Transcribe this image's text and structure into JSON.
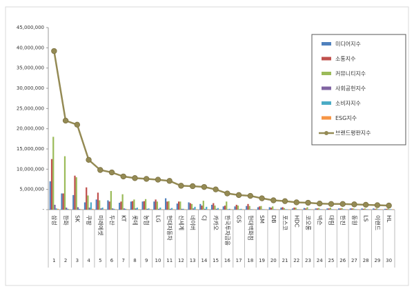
{
  "chart_data": {
    "type": "bar",
    "categories": [
      "삼성",
      "한화",
      "SK",
      "쿠팡",
      "미래에셋",
      "두산",
      "KT",
      "롯데",
      "농협",
      "LG",
      "현대자동차",
      "신세계",
      "네이버",
      "CJ",
      "카카오",
      "한국투자금융",
      "GS",
      "현대백화점",
      "SM",
      "DB",
      "포스코",
      "HDC",
      "코오롱",
      "넥슨",
      "대림",
      "한진",
      "동원",
      "LS",
      "이랜드",
      "HL"
    ],
    "ranks": [
      1,
      2,
      3,
      4,
      5,
      6,
      7,
      8,
      9,
      10,
      11,
      12,
      13,
      14,
      15,
      16,
      17,
      18,
      19,
      20,
      21,
      22,
      23,
      24,
      25,
      26,
      27,
      28,
      29,
      30
    ],
    "ylim": [
      0,
      45000000
    ],
    "yticks": [
      {
        "value": 0,
        "label": "-"
      },
      {
        "value": 5000000,
        "label": "5,000,000"
      },
      {
        "value": 10000000,
        "label": "10,000,000"
      },
      {
        "value": 15000000,
        "label": "15,000,000"
      },
      {
        "value": 20000000,
        "label": "20,000,000"
      },
      {
        "value": 25000000,
        "label": "25,000,000"
      },
      {
        "value": 30000000,
        "label": "30,000,000"
      },
      {
        "value": 35000000,
        "label": "35,000,000"
      },
      {
        "value": 40000000,
        "label": "40,000,000"
      },
      {
        "value": 45000000,
        "label": "45,000,000"
      }
    ],
    "legend": "upper right",
    "series": [
      {
        "name": "미디어지수",
        "color": "#4f81bd",
        "values": [
          7000000,
          4000000,
          3600000,
          1800000,
          2500000,
          2300000,
          1700000,
          2000000,
          2000000,
          2000000,
          2800000,
          1500000,
          1800000,
          1400000,
          1200000,
          800000,
          800000,
          900000,
          600000,
          600000,
          500000,
          300000,
          400000,
          300000,
          300000,
          300000,
          300000,
          300000,
          300000,
          200000
        ]
      },
      {
        "name": "소통지수",
        "color": "#c0504d",
        "values": [
          12500000,
          4000000,
          8400000,
          5500000,
          4200000,
          2000000,
          2000000,
          2100000,
          2100000,
          2500000,
          2000000,
          2000000,
          1600000,
          1000000,
          1600000,
          1000000,
          1200000,
          1400000,
          800000,
          500000,
          600000,
          500000,
          300000,
          300000,
          300000,
          300000,
          300000,
          200000,
          200000,
          200000
        ]
      },
      {
        "name": "커뮤니티지수",
        "color": "#9bbb59",
        "values": [
          18000000,
          13200000,
          8000000,
          3500000,
          2300000,
          4600000,
          3800000,
          2500000,
          2600000,
          2000000,
          2100000,
          2000000,
          1400000,
          2200000,
          1000000,
          2000000,
          1000000,
          900000,
          900000,
          800000,
          400000,
          500000,
          600000,
          400000,
          500000,
          400000,
          300000,
          300000,
          300000,
          300000
        ]
      },
      {
        "name": "사회공헌지수",
        "color": "#8064a2",
        "values": [
          1200000,
          500000,
          600000,
          500000,
          300000,
          300000,
          300000,
          300000,
          200000,
          200000,
          200000,
          200000,
          300000,
          200000,
          200000,
          100000,
          100000,
          100000,
          100000,
          100000,
          100000,
          100000,
          100000,
          100000,
          100000,
          100000,
          100000,
          100000,
          100000,
          100000
        ]
      },
      {
        "name": "소비자지수",
        "color": "#4bacc6",
        "values": [
          300000,
          200000,
          200000,
          1800000,
          500000,
          200000,
          200000,
          500000,
          300000,
          500000,
          400000,
          200000,
          700000,
          700000,
          400000,
          200000,
          200000,
          100000,
          100000,
          100000,
          100000,
          100000,
          100000,
          100000,
          100000,
          100000,
          100000,
          100000,
          100000,
          100000
        ]
      },
      {
        "name": "ESG지수",
        "color": "#f79646",
        "values": [
          200000,
          100000,
          100000,
          200000,
          100000,
          100000,
          100000,
          100000,
          100000,
          100000,
          100000,
          100000,
          100000,
          100000,
          100000,
          100000,
          100000,
          100000,
          100000,
          100000,
          100000,
          100000,
          100000,
          100000,
          100000,
          100000,
          100000,
          100000,
          100000,
          100000
        ]
      },
      {
        "name": "브랜드평판지수",
        "type": "line",
        "color": "#948a54",
        "values": [
          39200000,
          22000000,
          21000000,
          12300000,
          9800000,
          9200000,
          8200000,
          7800000,
          7600000,
          7400000,
          7100000,
          5900000,
          5800000,
          5600000,
          5000000,
          4000000,
          3600000,
          3400000,
          2800000,
          2300000,
          2100000,
          1800000,
          1700000,
          1500000,
          1400000,
          1400000,
          1300000,
          1200000,
          1100000,
          1000000
        ]
      }
    ]
  }
}
